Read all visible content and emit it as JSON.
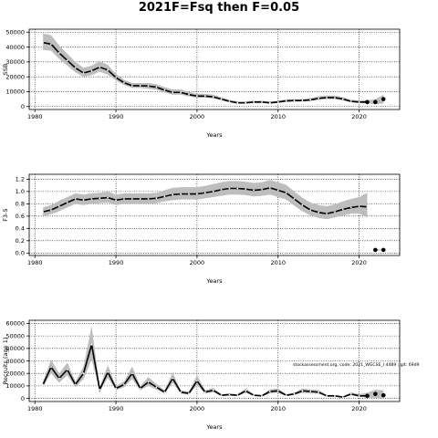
{
  "figure": {
    "title": "2021F=Fsq then F=0.05",
    "note": "stockassessment.org, code: 2021_WGCSE_I 4489 ; git: 69d9"
  },
  "colors": {
    "band": "#bdbdbd",
    "line": "#000000",
    "grid": "#000000"
  },
  "chart_data": [
    {
      "type": "line",
      "name": "ssb",
      "ylabel": "SSB",
      "xlabel": "Years",
      "xlim": [
        1979.3,
        2025
      ],
      "ylim": [
        -2000,
        52000
      ],
      "xticks": [
        1980,
        1990,
        2000,
        2010,
        2020
      ],
      "yticks": [
        0,
        10000,
        20000,
        30000,
        40000,
        50000
      ],
      "grid": true,
      "x": [
        1981,
        1982,
        1983,
        1984,
        1985,
        1986,
        1987,
        1988,
        1989,
        1990,
        1991,
        1992,
        1993,
        1994,
        1995,
        1996,
        1997,
        1998,
        1999,
        2000,
        2001,
        2002,
        2003,
        2004,
        2005,
        2006,
        2007,
        2008,
        2009,
        2010,
        2011,
        2012,
        2013,
        2014,
        2015,
        2016,
        2017,
        2018,
        2019,
        2020,
        2021
      ],
      "y": [
        43000,
        42000,
        36000,
        31000,
        26000,
        22500,
        24000,
        26500,
        24500,
        19500,
        16000,
        14000,
        14000,
        13800,
        13000,
        11000,
        9500,
        9500,
        8000,
        7000,
        7000,
        6500,
        5000,
        3500,
        2500,
        2500,
        3000,
        3000,
        2500,
        3000,
        3800,
        4000,
        4000,
        4500,
        5500,
        6000,
        6000,
        5000,
        3500,
        3000,
        3000
      ],
      "lower": [
        38000,
        37500,
        32000,
        27500,
        23000,
        20000,
        21000,
        23500,
        21500,
        17500,
        14500,
        12500,
        12500,
        12000,
        11300,
        9500,
        8000,
        8000,
        6800,
        6000,
        6000,
        5500,
        4200,
        2900,
        2000,
        2000,
        2400,
        2400,
        2000,
        2400,
        3100,
        3300,
        3300,
        3700,
        4500,
        5000,
        5000,
        4100,
        2800,
        2300,
        2200
      ],
      "upper": [
        49000,
        48000,
        41000,
        35500,
        30000,
        26000,
        27500,
        30500,
        28000,
        22000,
        18000,
        15800,
        15800,
        15800,
        15000,
        13000,
        11500,
        11500,
        9800,
        8500,
        8500,
        8000,
        6200,
        4500,
        3300,
        3300,
        3900,
        3900,
        3300,
        3900,
        4800,
        5000,
        5000,
        5600,
        6800,
        7400,
        7300,
        6300,
        4500,
        4000,
        4200
      ],
      "forecast": {
        "x": [
          2021,
          2022,
          2023
        ],
        "y": [
          3000,
          3000,
          5000
        ],
        "lower": [
          2200,
          1600,
          2000
        ],
        "upper": [
          4200,
          5000,
          8000
        ]
      }
    },
    {
      "type": "line",
      "name": "f",
      "ylabel": "F3-5",
      "xlabel": "Years",
      "xlim": [
        1979.3,
        2025
      ],
      "ylim": [
        -0.04,
        1.28
      ],
      "xticks": [
        1980,
        1990,
        2000,
        2010,
        2020
      ],
      "yticks": [
        0.0,
        0.2,
        0.4,
        0.6,
        0.8,
        1.0,
        1.2
      ],
      "ytick_labels": [
        "0.0",
        "0.2",
        "0.4",
        "0.6",
        "0.8",
        "1.0",
        "1.2"
      ],
      "grid": true,
      "x": [
        1981,
        1982,
        1983,
        1984,
        1985,
        1986,
        1987,
        1988,
        1989,
        1990,
        1991,
        1992,
        1993,
        1994,
        1995,
        1996,
        1997,
        1998,
        1999,
        2000,
        2001,
        2002,
        2003,
        2004,
        2005,
        2006,
        2007,
        2008,
        2009,
        2010,
        2011,
        2012,
        2013,
        2014,
        2015,
        2016,
        2017,
        2018,
        2019,
        2020,
        2021
      ],
      "y": [
        0.67,
        0.7,
        0.76,
        0.82,
        0.88,
        0.86,
        0.88,
        0.89,
        0.9,
        0.86,
        0.88,
        0.88,
        0.88,
        0.88,
        0.89,
        0.92,
        0.95,
        0.96,
        0.96,
        0.96,
        0.98,
        1.0,
        1.03,
        1.05,
        1.05,
        1.04,
        1.02,
        1.03,
        1.06,
        1.02,
        0.98,
        0.88,
        0.78,
        0.7,
        0.66,
        0.64,
        0.67,
        0.71,
        0.74,
        0.76,
        0.75
      ],
      "lower": [
        0.6,
        0.63,
        0.68,
        0.74,
        0.8,
        0.78,
        0.8,
        0.81,
        0.82,
        0.78,
        0.8,
        0.8,
        0.8,
        0.8,
        0.81,
        0.84,
        0.86,
        0.87,
        0.87,
        0.87,
        0.89,
        0.91,
        0.93,
        0.95,
        0.95,
        0.94,
        0.92,
        0.93,
        0.95,
        0.91,
        0.87,
        0.77,
        0.68,
        0.61,
        0.57,
        0.55,
        0.58,
        0.61,
        0.64,
        0.64,
        0.58
      ],
      "upper": [
        0.74,
        0.78,
        0.85,
        0.91,
        0.97,
        0.95,
        0.97,
        0.98,
        1.0,
        0.95,
        0.97,
        0.97,
        0.97,
        0.97,
        0.98,
        1.02,
        1.06,
        1.07,
        1.07,
        1.07,
        1.09,
        1.12,
        1.15,
        1.17,
        1.17,
        1.16,
        1.14,
        1.15,
        1.19,
        1.15,
        1.11,
        1.0,
        0.9,
        0.82,
        0.78,
        0.76,
        0.79,
        0.84,
        0.88,
        0.91,
        0.98
      ],
      "forecast": {
        "x": [
          2022,
          2023
        ],
        "y": [
          0.05,
          0.05
        ],
        "lower": [
          0.04,
          0.04
        ],
        "upper": [
          0.06,
          0.06
        ]
      }
    },
    {
      "type": "line",
      "name": "rec",
      "ylabel": "Recruits (age 1)",
      "xlabel": "Years",
      "xlim": [
        1979.3,
        2025
      ],
      "ylim": [
        -2500,
        62500
      ],
      "xticks": [
        1980,
        1990,
        2000,
        2010,
        2020
      ],
      "yticks": [
        0,
        10000,
        20000,
        30000,
        40000,
        50000,
        60000
      ],
      "grid": true,
      "x": [
        1981,
        1982,
        1983,
        1984,
        1985,
        1986,
        1987,
        1988,
        1989,
        1990,
        1991,
        1992,
        1993,
        1994,
        1995,
        1996,
        1997,
        1998,
        1999,
        2000,
        2001,
        2002,
        2003,
        2004,
        2005,
        2006,
        2007,
        2008,
        2009,
        2010,
        2011,
        2012,
        2013,
        2014,
        2015,
        2016,
        2017,
        2018,
        2019,
        2020,
        2021
      ],
      "y": [
        11000,
        25000,
        16000,
        23000,
        11000,
        20000,
        43000,
        7000,
        21000,
        8000,
        11000,
        20000,
        8000,
        13000,
        9000,
        5000,
        16000,
        5000,
        4000,
        14000,
        5000,
        6500,
        2500,
        3000,
        2500,
        6000,
        2500,
        2000,
        5500,
        6000,
        2500,
        3500,
        6000,
        5500,
        5000,
        2000,
        2000,
        1000,
        3500,
        2000,
        2000
      ],
      "lower": [
        9000,
        20000,
        12500,
        18500,
        9000,
        15500,
        31000,
        5500,
        16500,
        6500,
        9000,
        15500,
        6500,
        10000,
        7000,
        3800,
        12500,
        3800,
        3000,
        10500,
        3800,
        5000,
        1800,
        2200,
        1800,
        4500,
        1800,
        1400,
        4000,
        4500,
        1800,
        2600,
        4500,
        4000,
        3700,
        1400,
        1400,
        600,
        2500,
        1200,
        700
      ],
      "upper": [
        13500,
        31000,
        20000,
        28500,
        13500,
        25500,
        58000,
        9000,
        26500,
        10000,
        13500,
        25500,
        10000,
        17000,
        11500,
        6500,
        20500,
        6500,
        5300,
        18500,
        6500,
        8500,
        3300,
        4000,
        3300,
        8000,
        3300,
        2700,
        7300,
        8000,
        3300,
        4600,
        8000,
        7200,
        6700,
        2700,
        2700,
        1500,
        4800,
        3300,
        4500
      ],
      "forecast": {
        "x": [
          2021,
          2022,
          2023
        ],
        "y": [
          2000,
          3500,
          2500
        ],
        "lower": [
          700,
          300,
          300
        ],
        "upper": [
          4500,
          7000,
          6500
        ]
      }
    }
  ]
}
